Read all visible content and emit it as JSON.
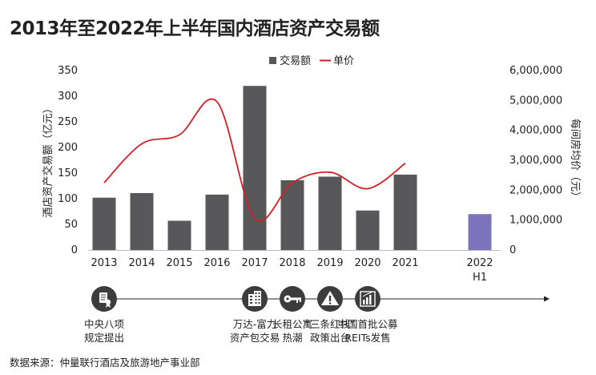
{
  "title": "2013年至2022年上半年国内酒店资产交易额",
  "source": "数据来源：仲量联行酒店及旅游地产事业部",
  "colors": {
    "bar": "#58585a",
    "bar_highlight": "#7b74bd",
    "line": "#d11f26",
    "icon": "#3c3c3c"
  },
  "chart_data": {
    "type": "bar",
    "categories": [
      "2013",
      "2014",
      "2015",
      "2016",
      "2017",
      "2018",
      "2019",
      "2020",
      "2021",
      "2022\nH1"
    ],
    "category_labels": [
      [
        "2013"
      ],
      [
        "2014"
      ],
      [
        "2015"
      ],
      [
        "2016"
      ],
      [
        "2017"
      ],
      [
        "2018"
      ],
      [
        "2019"
      ],
      [
        "2020"
      ],
      [
        "2021"
      ],
      [
        "2022",
        "H1"
      ]
    ],
    "series": [
      {
        "name": "交易额",
        "type": "bar",
        "axis": "left",
        "values": [
          102,
          111,
          57,
          108,
          320,
          136,
          143,
          77,
          147,
          70
        ],
        "highlight_index": 9
      },
      {
        "name": "单价",
        "type": "line",
        "axis": "right",
        "values": [
          2250000,
          3550000,
          3850000,
          4950000,
          1050000,
          2250000,
          2600000,
          2050000,
          2900000,
          null
        ]
      }
    ],
    "ylabel": "酒店资产交易额（亿元）",
    "ylabel_right": "每间房均价（元）",
    "ylim": [
      0,
      350
    ],
    "yticks": [
      0,
      50,
      100,
      150,
      200,
      250,
      300,
      350
    ],
    "ylim_right": [
      0,
      6000000
    ],
    "yticks_right": [
      "0",
      "1,000,000",
      "2,000,000",
      "3,000,000",
      "4,000,000",
      "5,000,000",
      "6,000,000"
    ],
    "legend": [
      "交易额",
      "单价"
    ],
    "legend_position": "top-center"
  },
  "timeline": [
    {
      "year_index": 0,
      "icon": "document-icon",
      "lines": [
        "中央八项",
        "规定提出"
      ]
    },
    {
      "year_index": 4,
      "icon": "building-icon",
      "lines": [
        "万达-富力",
        "资产包交易"
      ]
    },
    {
      "year_index": 5,
      "icon": "key-icon",
      "lines": [
        "长租公寓",
        "热潮"
      ]
    },
    {
      "year_index": 6,
      "icon": "warning-icon",
      "lines": [
        "“三条红线”",
        "政策出台"
      ]
    },
    {
      "year_index": 7,
      "icon": "bar-chart-icon",
      "lines": [
        "中国首批公募",
        "REITs发售"
      ]
    }
  ]
}
